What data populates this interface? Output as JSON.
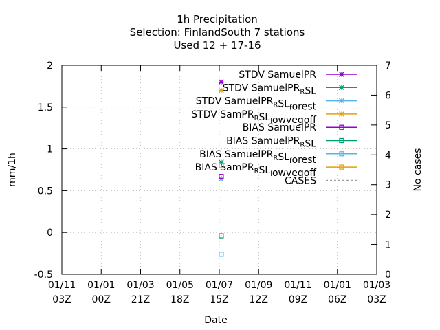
{
  "chart_data": {
    "type": "scatter",
    "title_lines": [
      "1h Precipitation",
      "Selection: FinlandSouth      7 stations",
      "Used  12 + 17-16"
    ],
    "xlabel": "Date",
    "ylabel": "mm/1h",
    "y2label": "No cases",
    "ylim": [
      -0.5,
      2
    ],
    "y2lim": [
      0,
      7
    ],
    "y_ticks": [
      "-0.5",
      "0",
      "0.5",
      "1",
      "1.5",
      "2"
    ],
    "y_tick_values": [
      -0.5,
      0,
      0.5,
      1,
      1.5,
      2
    ],
    "y2_ticks": [
      "0",
      "1",
      "2",
      "3",
      "4",
      "5",
      "6",
      "7"
    ],
    "y2_tick_values": [
      0,
      1,
      2,
      3,
      4,
      5,
      6,
      7
    ],
    "x_ticks": [
      {
        "date": "01/11",
        "hour": "03Z"
      },
      {
        "date": "01/01",
        "hour": "00Z"
      },
      {
        "date": "01/03",
        "hour": "21Z"
      },
      {
        "date": "01/05",
        "hour": "18Z"
      },
      {
        "date": "01/07",
        "hour": "15Z"
      },
      {
        "date": "01/09",
        "hour": "12Z"
      },
      {
        "date": "01/11",
        "hour": "09Z"
      },
      {
        "date": "01/01",
        "hour": "06Z"
      },
      {
        "date": "01/03",
        "hour": "03Z"
      }
    ],
    "x_point_tick": 4.05,
    "grid": true,
    "legend_position": "top-right",
    "series": [
      {
        "name": "STDV SamuelPR",
        "label_parts": [
          [
            "STDV SamuelPR",
            ""
          ]
        ],
        "color": "#9400d3",
        "marker": "star",
        "y": 1.8
      },
      {
        "name": "STDV SamuelPR_RSL",
        "label_parts": [
          [
            "STDV SamuelPR",
            ""
          ],
          [
            "R",
            "sub"
          ],
          [
            "SL",
            ""
          ]
        ],
        "color": "#009e73",
        "marker": "star",
        "y": 0.84
      },
      {
        "name": "STDV SamuelPR_RSL_forest",
        "label_parts": [
          [
            "STDV SamuelPR",
            ""
          ],
          [
            "R",
            "sub"
          ],
          [
            "SL",
            ""
          ],
          [
            "f",
            "sub"
          ],
          [
            "orest",
            ""
          ]
        ],
        "color": "#56b4e9",
        "marker": "star",
        "y": 0.64
      },
      {
        "name": "STDV SamPR_RSL_lowvegoff",
        "label_parts": [
          [
            "STDV SamPR",
            ""
          ],
          [
            "R",
            "sub"
          ],
          [
            "SL",
            ""
          ],
          [
            "l",
            "sub"
          ],
          [
            "owvegoff",
            ""
          ]
        ],
        "color": "#e69f00",
        "marker": "star",
        "y": 1.7
      },
      {
        "name": "BIAS SamuelPR",
        "label_parts": [
          [
            "BIAS SamuelPR",
            ""
          ]
        ],
        "color": "#9400d3",
        "marker": "square",
        "y": 0.67
      },
      {
        "name": "BIAS SamuelPR_RSL",
        "label_parts": [
          [
            "BIAS SamuelPR",
            ""
          ],
          [
            "R",
            "sub"
          ],
          [
            "SL",
            ""
          ]
        ],
        "color": "#009e73",
        "marker": "square",
        "y": -0.04
      },
      {
        "name": "BIAS SamuelPR_RSL_forest",
        "label_parts": [
          [
            "BIAS SamuelPR",
            ""
          ],
          [
            "R",
            "sub"
          ],
          [
            "SL",
            ""
          ],
          [
            "f",
            "sub"
          ],
          [
            "orest",
            ""
          ]
        ],
        "color": "#56b4e9",
        "marker": "square",
        "y": -0.26
      },
      {
        "name": "BIAS SamPR_RSL_lowvegoff",
        "label_parts": [
          [
            "BIAS SamPR",
            ""
          ],
          [
            "R",
            "sub"
          ],
          [
            "SL",
            ""
          ],
          [
            "l",
            "sub"
          ],
          [
            "owvegoff",
            ""
          ]
        ],
        "color": "#e69f00",
        "marker": "square",
        "y": 0.8
      },
      {
        "name": "CASES",
        "label_parts": [
          [
            "CASES",
            ""
          ]
        ],
        "color": "#a0a0a0",
        "marker": "dash-line",
        "y": null
      }
    ]
  }
}
